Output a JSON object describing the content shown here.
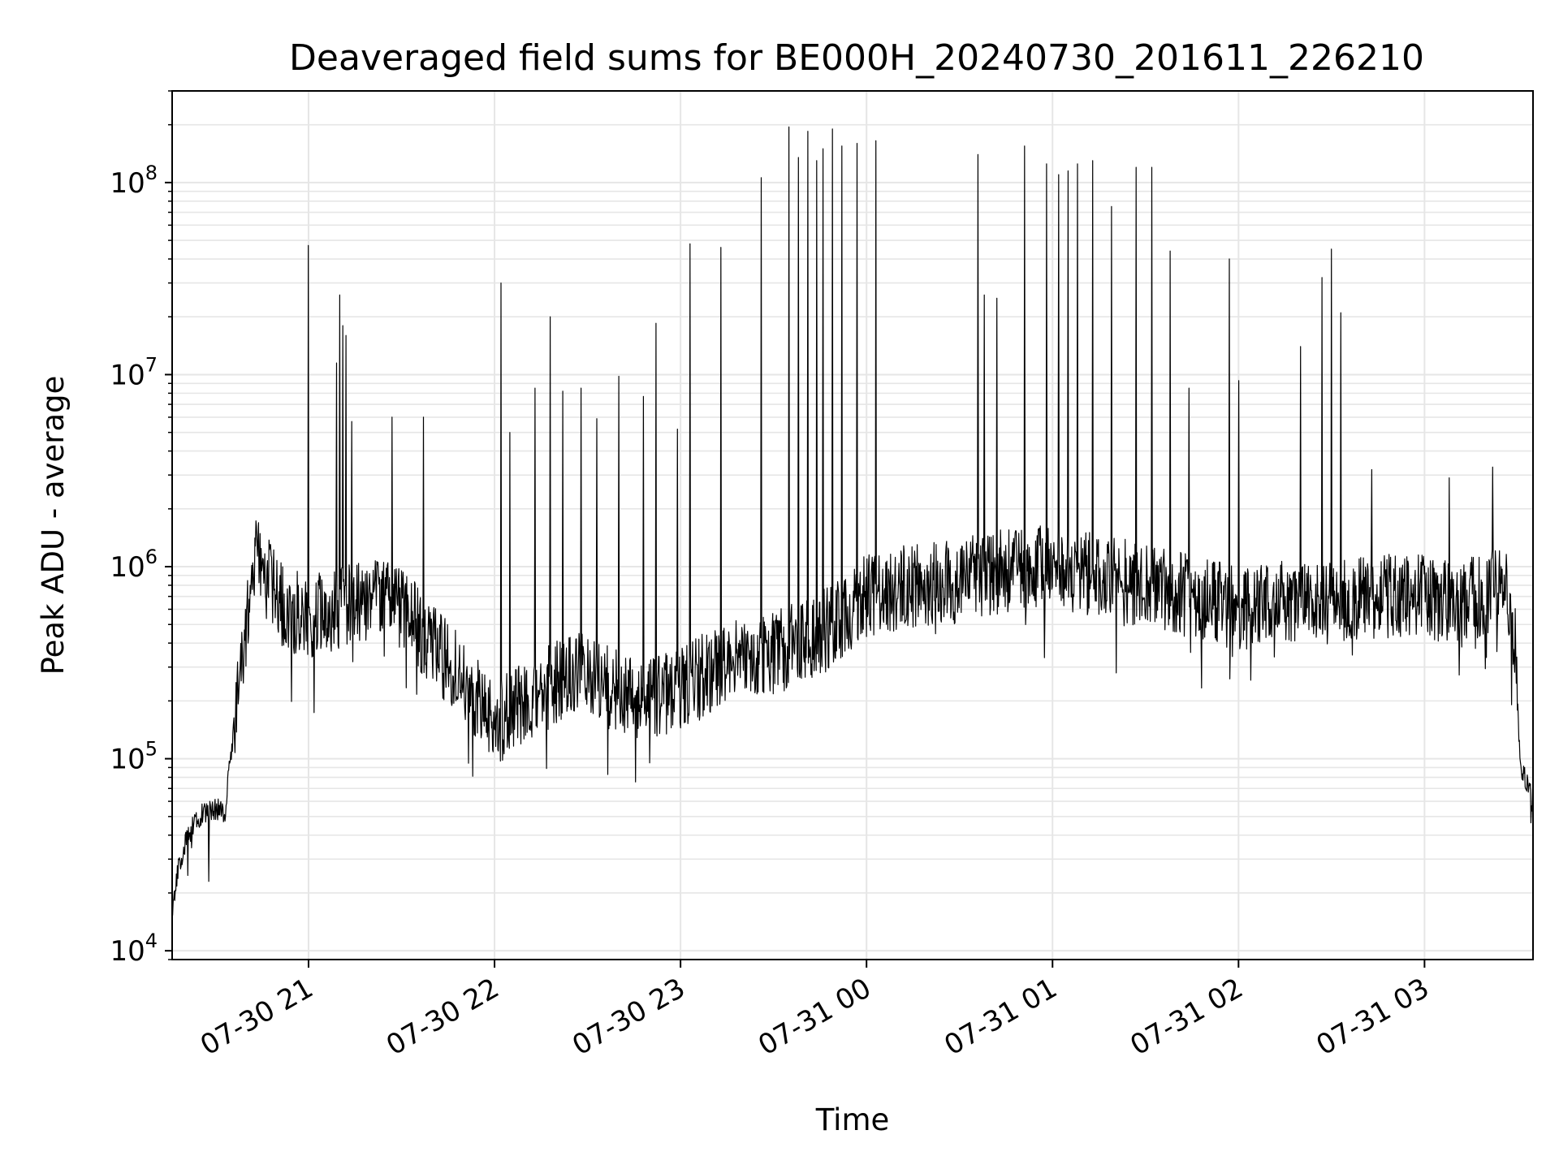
{
  "chart_data": {
    "type": "line",
    "title": "Deaveraged field sums for BE000H_20240730_201611_226210",
    "xlabel": "Time",
    "ylabel": "Peak ADU - average",
    "yscale": "log",
    "xlim": [
      "2024-07-30 20:16",
      "2024-07-31 03:35"
    ],
    "ylim": [
      9000,
      300000000
    ],
    "grid": true,
    "line_color": "#000000",
    "grid_color": "#e6e6e6",
    "x_ticks": [
      {
        "label": "07-30 21",
        "time": "2024-07-30 21:00"
      },
      {
        "label": "07-30 22",
        "time": "2024-07-30 22:00"
      },
      {
        "label": "07-30 23",
        "time": "2024-07-30 23:00"
      },
      {
        "label": "07-31 00",
        "time": "2024-07-31 00:00"
      },
      {
        "label": "07-31 01",
        "time": "2024-07-31 01:00"
      },
      {
        "label": "07-31 02",
        "time": "2024-07-31 02:00"
      },
      {
        "label": "07-31 03",
        "time": "2024-07-31 03:00"
      }
    ],
    "y_ticks": [
      {
        "base": "10",
        "exp": "4",
        "value": 10000
      },
      {
        "base": "10",
        "exp": "5",
        "value": 100000
      },
      {
        "base": "10",
        "exp": "6",
        "value": 1000000
      },
      {
        "base": "10",
        "exp": "7",
        "value": 10000000
      },
      {
        "base": "10",
        "exp": "8",
        "value": 100000000
      }
    ],
    "series": [
      {
        "baseline": [
          [
            "2024-07-30 20:16",
            15000
          ],
          [
            "2024-07-30 20:18",
            27000
          ],
          [
            "2024-07-30 20:21",
            40000
          ],
          [
            "2024-07-30 20:25",
            50000
          ],
          [
            "2024-07-30 20:30",
            55000
          ],
          [
            "2024-07-30 20:33",
            52000
          ],
          [
            "2024-07-30 20:36",
            150000
          ],
          [
            "2024-07-30 20:40",
            500000
          ],
          [
            "2024-07-30 20:43",
            1100000
          ],
          [
            "2024-07-30 20:47",
            850000
          ],
          [
            "2024-07-30 20:52",
            600000
          ],
          [
            "2024-07-30 21:00",
            550000
          ],
          [
            "2024-07-30 21:10",
            600000
          ],
          [
            "2024-07-30 21:20",
            700000
          ],
          [
            "2024-07-30 21:30",
            600000
          ],
          [
            "2024-07-30 21:40",
            400000
          ],
          [
            "2024-07-30 21:50",
            250000
          ],
          [
            "2024-07-30 22:00",
            150000
          ],
          [
            "2024-07-30 22:10",
            200000
          ],
          [
            "2024-07-30 22:20",
            250000
          ],
          [
            "2024-07-30 22:30",
            280000
          ],
          [
            "2024-07-30 22:40",
            220000
          ],
          [
            "2024-07-30 22:50",
            200000
          ],
          [
            "2024-07-30 23:00",
            230000
          ],
          [
            "2024-07-30 23:15",
            320000
          ],
          [
            "2024-07-30 23:30",
            350000
          ],
          [
            "2024-07-30 23:45",
            450000
          ],
          [
            "2024-07-31 00:00",
            700000
          ],
          [
            "2024-07-31 00:15",
            800000
          ],
          [
            "2024-07-31 00:30",
            850000
          ],
          [
            "2024-07-31 00:45",
            950000
          ],
          [
            "2024-07-31 01:00",
            1000000
          ],
          [
            "2024-07-31 01:15",
            900000
          ],
          [
            "2024-07-31 01:30",
            800000
          ],
          [
            "2024-07-31 01:45",
            700000
          ],
          [
            "2024-07-31 02:00",
            600000
          ],
          [
            "2024-07-31 02:15",
            650000
          ],
          [
            "2024-07-31 02:30",
            650000
          ],
          [
            "2024-07-31 02:45",
            700000
          ],
          [
            "2024-07-31 03:00",
            700000
          ],
          [
            "2024-07-31 03:10",
            650000
          ],
          [
            "2024-07-31 03:20",
            700000
          ],
          [
            "2024-07-31 03:26",
            850000
          ],
          [
            "2024-07-31 03:29",
            450000
          ],
          [
            "2024-07-31 03:31",
            90000
          ],
          [
            "2024-07-31 03:35",
            60000
          ]
        ],
        "spikes": [
          [
            "2024-07-30 21:00",
            47000000
          ],
          [
            "2024-07-30 21:09",
            11500000
          ],
          [
            "2024-07-30 21:10",
            26000000
          ],
          [
            "2024-07-30 21:11",
            18000000
          ],
          [
            "2024-07-30 21:12",
            16000000
          ],
          [
            "2024-07-30 21:14",
            5700000
          ],
          [
            "2024-07-30 21:27",
            6000000
          ],
          [
            "2024-07-30 21:37",
            6000000
          ],
          [
            "2024-07-30 22:02",
            30000000
          ],
          [
            "2024-07-30 22:05",
            5000000
          ],
          [
            "2024-07-30 22:13",
            8500000
          ],
          [
            "2024-07-30 22:18",
            20000000
          ],
          [
            "2024-07-30 22:22",
            8200000
          ],
          [
            "2024-07-30 22:28",
            8500000
          ],
          [
            "2024-07-30 22:33",
            5900000
          ],
          [
            "2024-07-30 22:40",
            9800000
          ],
          [
            "2024-07-30 22:48",
            7700000
          ],
          [
            "2024-07-30 22:52",
            18500000
          ],
          [
            "2024-07-30 22:59",
            5200000
          ],
          [
            "2024-07-30 23:03",
            48000000
          ],
          [
            "2024-07-30 23:13",
            46000000
          ],
          [
            "2024-07-30 23:26",
            106000000
          ],
          [
            "2024-07-30 23:35",
            195000000
          ],
          [
            "2024-07-30 23:38",
            135000000
          ],
          [
            "2024-07-30 23:41",
            185000000
          ],
          [
            "2024-07-30 23:44",
            130000000
          ],
          [
            "2024-07-30 23:46",
            150000000
          ],
          [
            "2024-07-30 23:49",
            190000000
          ],
          [
            "2024-07-30 23:52",
            155000000
          ],
          [
            "2024-07-30 23:57",
            160000000
          ],
          [
            "2024-07-31 00:03",
            165000000
          ],
          [
            "2024-07-31 00:36",
            140000000
          ],
          [
            "2024-07-31 00:38",
            26000000
          ],
          [
            "2024-07-31 00:42",
            25000000
          ],
          [
            "2024-07-31 00:51",
            155000000
          ],
          [
            "2024-07-31 00:58",
            125000000
          ],
          [
            "2024-07-31 01:02",
            110000000
          ],
          [
            "2024-07-31 01:05",
            115000000
          ],
          [
            "2024-07-31 01:08",
            125000000
          ],
          [
            "2024-07-31 01:13",
            130000000
          ],
          [
            "2024-07-31 01:19",
            75000000
          ],
          [
            "2024-07-31 01:27",
            120000000
          ],
          [
            "2024-07-31 01:32",
            120000000
          ],
          [
            "2024-07-31 01:38",
            44000000
          ],
          [
            "2024-07-31 01:44",
            8500000
          ],
          [
            "2024-07-31 01:57",
            40000000
          ],
          [
            "2024-07-31 02:00",
            9300000
          ],
          [
            "2024-07-31 02:20",
            14000000
          ],
          [
            "2024-07-31 02:27",
            32000000
          ],
          [
            "2024-07-31 02:30",
            45000000
          ],
          [
            "2024-07-31 02:33",
            21000000
          ],
          [
            "2024-07-31 02:43",
            3200000
          ],
          [
            "2024-07-31 03:08",
            2900000
          ],
          [
            "2024-07-31 03:22",
            3300000
          ]
        ]
      }
    ]
  }
}
